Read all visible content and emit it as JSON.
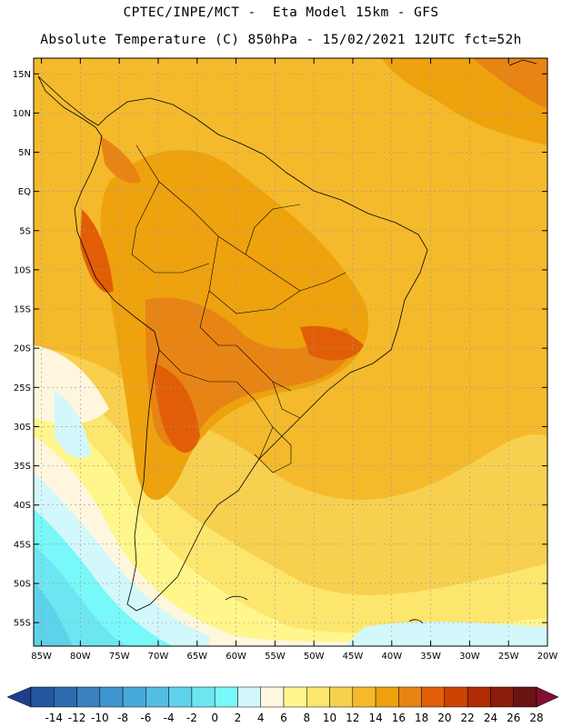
{
  "header": {
    "line1": "CPTEC/INPE/MCT -  Eta Model 15km - GFS",
    "line2": "Absolute Temperature (C) 850hPa - 15/02/2021 12UTC fct=52h"
  },
  "map": {
    "lon_range": [
      -86,
      -20
    ],
    "lat_range": [
      -58,
      17
    ],
    "lat_ticks": [
      "15N",
      "10N",
      "5N",
      "EQ",
      "5S",
      "10S",
      "15S",
      "20S",
      "25S",
      "30S",
      "35S",
      "40S",
      "45S",
      "50S",
      "55S"
    ],
    "lat_values": [
      15,
      10,
      5,
      0,
      -5,
      -10,
      -15,
      -20,
      -25,
      -30,
      -35,
      -40,
      -45,
      -50,
      -55
    ],
    "lon_ticks": [
      "85W",
      "80W",
      "75W",
      "70W",
      "65W",
      "60W",
      "55W",
      "50W",
      "45W",
      "40W",
      "35W",
      "30W",
      "25W",
      "20W"
    ],
    "lon_values": [
      -85,
      -80,
      -75,
      -70,
      -65,
      -60,
      -55,
      -50,
      -45,
      -40,
      -35,
      -30,
      -25,
      -20
    ],
    "grid": true
  },
  "colorbar": {
    "labels": [
      "-14",
      "-12",
      "-10",
      "-8",
      "-6",
      "-4",
      "-2",
      "0",
      "2",
      "4",
      "6",
      "8",
      "10",
      "12",
      "14",
      "16",
      "18",
      "20",
      "22",
      "24",
      "26",
      "28"
    ],
    "colors": [
      "#1f3e8c",
      "#2456a0",
      "#2c6cb0",
      "#3a82c0",
      "#3f96ce",
      "#48aad8",
      "#52bee2",
      "#5ed2ea",
      "#6ee6f2",
      "#78f8f8",
      "#d2f8fc",
      "#fff6de",
      "#fff68c",
      "#fce66e",
      "#f8d050",
      "#f4ba2c",
      "#eea20e",
      "#e88414",
      "#e25e06",
      "#cc4404",
      "#b02c04",
      "#8c1c0c",
      "#6c1414",
      "#801030"
    ]
  }
}
